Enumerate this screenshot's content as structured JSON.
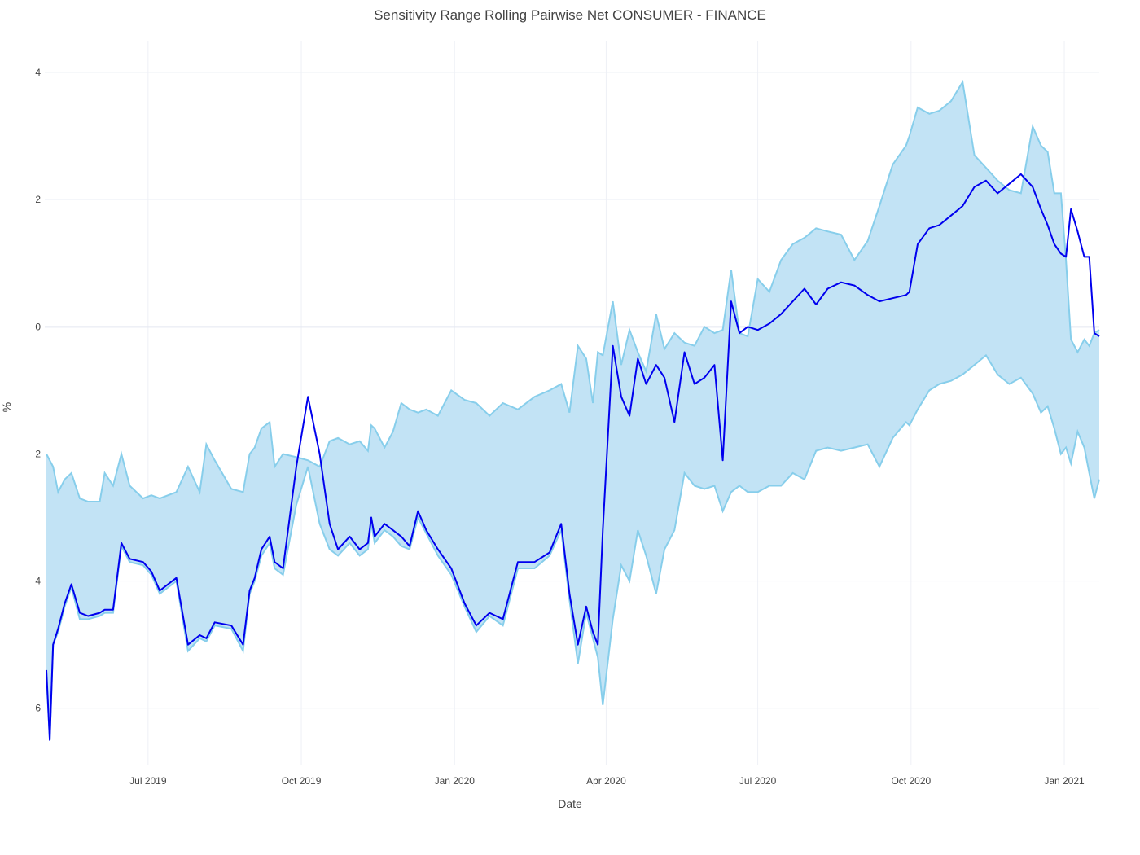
{
  "chart_data": {
    "type": "area",
    "title": "Sensitivity Range Rolling Pairwise Net CONSUMER - FINANCE",
    "xlabel": "Date",
    "ylabel": "%",
    "xlim": [
      "2019-04-30",
      "2021-01-22"
    ],
    "ylim": [
      -6.9,
      4.5
    ],
    "x_ticks": [
      {
        "date": "2019-07-01",
        "label": "Jul 2019"
      },
      {
        "date": "2019-10-01",
        "label": "Oct 2019"
      },
      {
        "date": "2020-01-01",
        "label": "Jan 2020"
      },
      {
        "date": "2020-04-01",
        "label": "Apr 2020"
      },
      {
        "date": "2020-07-01",
        "label": "Jul 2020"
      },
      {
        "date": "2020-10-01",
        "label": "Oct 2020"
      },
      {
        "date": "2021-01-01",
        "label": "Jan 2021"
      }
    ],
    "y_ticks": [
      {
        "value": 4,
        "label": "4"
      },
      {
        "value": 2,
        "label": "2"
      },
      {
        "value": 0,
        "label": "0"
      },
      {
        "value": -2,
        "label": "−2"
      },
      {
        "value": -4,
        "label": "−4"
      },
      {
        "value": -6,
        "label": "−6"
      }
    ],
    "grid": true,
    "legend": "none",
    "colors": {
      "line": "#0000ee",
      "band_fill": "#c2e3f5",
      "band_edge": "#87ceeb"
    },
    "series": [
      {
        "role": "upper_bound",
        "x": [
          "2019-05-01",
          "2019-05-05",
          "2019-05-08",
          "2019-05-12",
          "2019-05-16",
          "2019-05-21",
          "2019-05-26",
          "2019-06-02",
          "2019-06-05",
          "2019-06-10",
          "2019-06-15",
          "2019-06-20",
          "2019-06-28",
          "2019-07-03",
          "2019-07-08",
          "2019-07-18",
          "2019-07-25",
          "2019-08-01",
          "2019-08-05",
          "2019-08-10",
          "2019-08-20",
          "2019-08-27",
          "2019-08-31",
          "2019-09-03",
          "2019-09-07",
          "2019-09-12",
          "2019-09-15",
          "2019-09-20",
          "2019-09-28",
          "2019-10-05",
          "2019-10-12",
          "2019-10-18",
          "2019-10-23",
          "2019-10-30",
          "2019-11-05",
          "2019-11-10",
          "2019-11-12",
          "2019-11-14",
          "2019-11-20",
          "2019-11-25",
          "2019-11-30",
          "2019-12-05",
          "2019-12-10",
          "2019-12-15",
          "2019-12-22",
          "2019-12-30",
          "2020-01-07",
          "2020-01-14",
          "2020-01-22",
          "2020-01-30",
          "2020-02-08",
          "2020-02-18",
          "2020-02-27",
          "2020-03-05",
          "2020-03-10",
          "2020-03-15",
          "2020-03-20",
          "2020-03-24",
          "2020-03-27",
          "2020-03-30",
          "2020-04-05",
          "2020-04-10",
          "2020-04-15",
          "2020-04-20",
          "2020-04-25",
          "2020-05-01",
          "2020-05-06",
          "2020-05-12",
          "2020-05-18",
          "2020-05-24",
          "2020-05-30",
          "2020-06-05",
          "2020-06-10",
          "2020-06-15",
          "2020-06-20",
          "2020-06-25",
          "2020-07-01",
          "2020-07-08",
          "2020-07-15",
          "2020-07-22",
          "2020-07-29",
          "2020-08-05",
          "2020-08-12",
          "2020-08-20",
          "2020-08-28",
          "2020-09-05",
          "2020-09-12",
          "2020-09-20",
          "2020-09-28",
          "2020-09-30",
          "2020-10-05",
          "2020-10-12",
          "2020-10-18",
          "2020-10-25",
          "2020-11-01",
          "2020-11-08",
          "2020-11-15",
          "2020-11-22",
          "2020-11-29",
          "2020-12-06",
          "2020-12-13",
          "2020-12-18",
          "2020-12-22",
          "2020-12-26",
          "2020-12-30",
          "2021-01-02",
          "2021-01-05",
          "2021-01-09",
          "2021-01-13",
          "2021-01-16",
          "2021-01-19",
          "2021-01-22"
        ],
        "values": [
          -2.0,
          -2.2,
          -2.6,
          -2.4,
          -2.3,
          -2.7,
          -2.75,
          -2.75,
          -2.3,
          -2.5,
          -2.0,
          -2.5,
          -2.7,
          -2.65,
          -2.7,
          -2.6,
          -2.2,
          -2.6,
          -1.85,
          -2.1,
          -2.55,
          -2.6,
          -2.0,
          -1.9,
          -1.6,
          -1.5,
          -2.2,
          -2.0,
          -2.05,
          -2.1,
          -2.2,
          -1.8,
          -1.75,
          -1.85,
          -1.8,
          -1.95,
          -1.55,
          -1.6,
          -1.9,
          -1.65,
          -1.2,
          -1.3,
          -1.35,
          -1.3,
          -1.4,
          -1.0,
          -1.15,
          -1.2,
          -1.4,
          -1.2,
          -1.3,
          -1.1,
          -1.0,
          -0.9,
          -1.35,
          -0.3,
          -0.5,
          -1.2,
          -0.4,
          -0.45,
          0.4,
          -0.6,
          -0.05,
          -0.4,
          -0.7,
          0.2,
          -0.35,
          -0.1,
          -0.25,
          -0.3,
          0.0,
          -0.1,
          -0.05,
          0.9,
          -0.1,
          -0.15,
          0.75,
          0.55,
          1.05,
          1.3,
          1.4,
          1.55,
          1.5,
          1.45,
          1.05,
          1.35,
          1.9,
          2.55,
          2.85,
          3.0,
          3.45,
          3.35,
          3.4,
          3.55,
          3.85,
          2.7,
          2.5,
          2.3,
          2.15,
          2.1,
          3.15,
          2.85,
          2.75,
          2.1,
          2.1,
          1.05,
          -0.2,
          -0.4,
          -0.2,
          -0.3,
          -0.1,
          -0.05
        ],
        "note_ignore": ""
      },
      {
        "role": "lower_bound",
        "x": [],
        "values": []
      },
      {
        "role": "estimate",
        "x": [],
        "values": []
      }
    ]
  }
}
